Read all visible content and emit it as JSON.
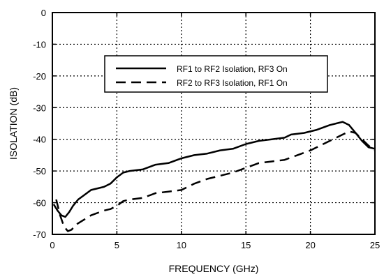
{
  "chart_data": {
    "type": "line",
    "title": "",
    "xlabel": "FREQUENCY (GHz)",
    "ylabel": "ISOLATION (dB)",
    "xlim": [
      0,
      25
    ],
    "ylim": [
      -70,
      0
    ],
    "xticks": [
      0,
      5,
      10,
      15,
      20,
      25
    ],
    "yticks": [
      0,
      -10,
      -20,
      -30,
      -40,
      -50,
      -60,
      -70
    ],
    "xtick_labels": [
      "0",
      "5",
      "10",
      "15",
      "20",
      "25"
    ],
    "ytick_labels": [
      "0",
      "-10",
      "-20",
      "-30",
      "-40",
      "-50",
      "-60",
      "-70"
    ],
    "grid": "dotted",
    "legend_position": "upper-center",
    "series": [
      {
        "name": "RF1 to RF2 Isolation, RF3 On",
        "style": "solid",
        "color": "#000000",
        "x": [
          0.1,
          0.4,
          0.7,
          1.0,
          1.3,
          1.6,
          2.0,
          2.5,
          3.0,
          3.5,
          4.0,
          4.5,
          5.0,
          5.5,
          6.0,
          7.0,
          8.0,
          9.0,
          10.0,
          11.0,
          12.0,
          13.0,
          14.0,
          15.0,
          16.0,
          17.0,
          18.0,
          18.5,
          19.5,
          20.5,
          21.5,
          22.0,
          22.5,
          23.0,
          23.5,
          24.0,
          24.5,
          25.0
        ],
        "y": [
          -60.5,
          -62.5,
          -64.0,
          -64.5,
          -63.0,
          -61.0,
          -59.0,
          -57.5,
          -56.0,
          -55.5,
          -55.0,
          -54.0,
          -52.0,
          -50.5,
          -50.0,
          -49.5,
          -48.0,
          -47.5,
          -46.0,
          -45.0,
          -44.5,
          -43.5,
          -43.0,
          -41.5,
          -40.5,
          -40.0,
          -39.5,
          -38.5,
          -38.0,
          -37.0,
          -35.5,
          -35.0,
          -34.5,
          -35.5,
          -38.0,
          -40.5,
          -42.5,
          -43.0
        ]
      },
      {
        "name": "RF2 to RF3 Isolation, RF1 On",
        "style": "dashed",
        "color": "#000000",
        "x": [
          0.3,
          0.6,
          0.9,
          1.2,
          1.5,
          1.8,
          2.2,
          3.0,
          4.0,
          4.5,
          5.0,
          5.5,
          6.0,
          7.0,
          8.0,
          9.0,
          10.0,
          11.0,
          12.0,
          13.0,
          14.0,
          15.0,
          16.0,
          17.0,
          18.0,
          19.0,
          20.0,
          21.0,
          22.0,
          22.5,
          23.0,
          23.5,
          24.0,
          24.5,
          25.0
        ],
        "y": [
          -59.0,
          -64.0,
          -67.5,
          -69.0,
          -68.5,
          -67.0,
          -66.0,
          -64.0,
          -62.5,
          -62.0,
          -61.0,
          -59.5,
          -59.0,
          -58.5,
          -57.0,
          -56.5,
          -56.0,
          -54.0,
          -52.5,
          -51.5,
          -50.5,
          -49.0,
          -47.5,
          -47.0,
          -46.5,
          -45.0,
          -43.5,
          -41.5,
          -39.5,
          -38.5,
          -37.5,
          -38.0,
          -40.0,
          -42.0,
          -43.5
        ]
      }
    ]
  }
}
